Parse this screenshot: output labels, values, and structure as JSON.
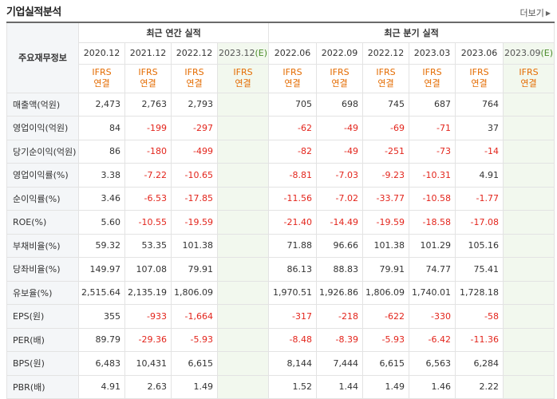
{
  "title": "기업실적분석",
  "more_label": "더보기",
  "header": {
    "row_label": "주요재무정보",
    "annual_label": "최근 연간 실적",
    "quarter_label": "최근 분기 실적",
    "annual_periods": [
      "2020.12",
      "2021.12",
      "2022.12",
      "2023.12"
    ],
    "quarter_periods": [
      "2022.06",
      "2022.09",
      "2022.12",
      "2023.03",
      "2023.06",
      "2023.09"
    ],
    "estimate_mark": "(E)",
    "ifrs_line1": "IFRS",
    "ifrs_line2": "연결"
  },
  "rows": [
    {
      "label": "매출액(억원)",
      "annual": [
        "2,473",
        "2,763",
        "2,793",
        ""
      ],
      "quarter": [
        "705",
        "698",
        "745",
        "687",
        "764",
        ""
      ]
    },
    {
      "label": "영업이익(억원)",
      "annual": [
        "84",
        "-199",
        "-297",
        ""
      ],
      "quarter": [
        "-62",
        "-49",
        "-69",
        "-71",
        "37",
        ""
      ]
    },
    {
      "label": "당기순이익(억원)",
      "annual": [
        "86",
        "-180",
        "-499",
        ""
      ],
      "quarter": [
        "-82",
        "-49",
        "-251",
        "-73",
        "-14",
        ""
      ]
    },
    {
      "label": "영업이익률(%)",
      "annual": [
        "3.38",
        "-7.22",
        "-10.65",
        ""
      ],
      "quarter": [
        "-8.81",
        "-7.03",
        "-9.23",
        "-10.31",
        "4.91",
        ""
      ]
    },
    {
      "label": "순이익률(%)",
      "annual": [
        "3.46",
        "-6.53",
        "-17.85",
        ""
      ],
      "quarter": [
        "-11.56",
        "-7.02",
        "-33.77",
        "-10.58",
        "-1.77",
        ""
      ]
    },
    {
      "label": "ROE(%)",
      "annual": [
        "5.60",
        "-10.55",
        "-19.59",
        ""
      ],
      "quarter": [
        "-21.40",
        "-14.49",
        "-19.59",
        "-18.58",
        "-17.08",
        ""
      ]
    },
    {
      "label": "부채비율(%)",
      "annual": [
        "59.32",
        "53.35",
        "101.38",
        ""
      ],
      "quarter": [
        "71.88",
        "96.66",
        "101.38",
        "101.29",
        "105.16",
        ""
      ]
    },
    {
      "label": "당좌비율(%)",
      "annual": [
        "149.97",
        "107.08",
        "79.91",
        ""
      ],
      "quarter": [
        "86.13",
        "88.83",
        "79.91",
        "74.77",
        "75.41",
        ""
      ]
    },
    {
      "label": "유보율(%)",
      "annual": [
        "2,515.64",
        "2,135.19",
        "1,806.09",
        ""
      ],
      "quarter": [
        "1,970.51",
        "1,926.86",
        "1,806.09",
        "1,740.01",
        "1,728.18",
        ""
      ]
    },
    {
      "label": "EPS(원)",
      "annual": [
        "355",
        "-933",
        "-1,664",
        ""
      ],
      "quarter": [
        "-317",
        "-218",
        "-622",
        "-330",
        "-58",
        ""
      ]
    },
    {
      "label": "PER(배)",
      "annual": [
        "89.79",
        "-29.36",
        "-5.93",
        ""
      ],
      "quarter": [
        "-8.48",
        "-8.39",
        "-5.93",
        "-6.42",
        "-11.36",
        ""
      ]
    },
    {
      "label": "BPS(원)",
      "annual": [
        "6,483",
        "10,431",
        "6,615",
        ""
      ],
      "quarter": [
        "8,144",
        "7,444",
        "6,615",
        "6,563",
        "6,284",
        ""
      ]
    },
    {
      "label": "PBR(배)",
      "annual": [
        "4.91",
        "2.63",
        "1.49",
        ""
      ],
      "quarter": [
        "1.52",
        "1.44",
        "1.49",
        "1.46",
        "2.22",
        ""
      ]
    }
  ],
  "group_breaks": [
    3,
    6,
    9
  ],
  "colors": {
    "negative": "#e3251c",
    "ifrs": "#e46b00",
    "estimate_bg": "#f2f8ee",
    "label_bg": "#f4f6f8"
  }
}
